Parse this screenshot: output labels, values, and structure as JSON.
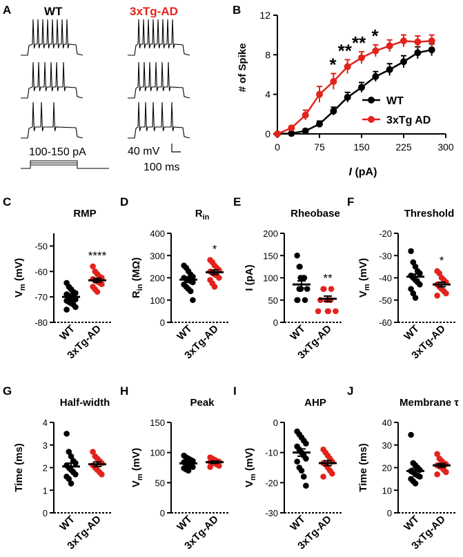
{
  "panelA": {
    "label": "A",
    "wt_label": "WT",
    "tg_label": "3xTg-AD",
    "tg_color": "#e3231b",
    "stim_label": "100-150 pA",
    "scale_mv": "40 mV",
    "scale_ms": "100 ms"
  },
  "panelB": {
    "label": "B",
    "ylabel": "# of Spike",
    "xlabel_i": "I",
    "xlabel_unit": " (pA)",
    "sig": [
      "*",
      "**",
      "**",
      "*"
    ],
    "chart_data": {
      "type": "line",
      "x": [
        0,
        25,
        50,
        75,
        100,
        125,
        150,
        175,
        200,
        225,
        250,
        275
      ],
      "xlim": [
        0,
        300
      ],
      "ylim": [
        0,
        12
      ],
      "xticks": [
        0,
        75,
        150,
        225,
        300
      ],
      "xtick_labels": [
        "0",
        "75",
        "150",
        "225",
        "300"
      ],
      "yticks": [
        0,
        4,
        8,
        12
      ],
      "ytick_labels": [
        "0",
        "4",
        "8",
        "12"
      ],
      "series": [
        {
          "name": "WT",
          "color": "#000000",
          "values": [
            0,
            0.05,
            0.3,
            1.0,
            2.3,
            3.7,
            4.7,
            5.8,
            6.5,
            7.3,
            8.2,
            8.5
          ],
          "err": [
            0,
            0.1,
            0.2,
            0.3,
            0.4,
            0.5,
            0.5,
            0.5,
            0.6,
            0.6,
            0.6,
            0.6
          ]
        },
        {
          "name": "3xTg AD",
          "color": "#e3231b",
          "values": [
            0,
            0.6,
            1.9,
            4.0,
            5.3,
            6.8,
            7.7,
            8.4,
            8.9,
            9.4,
            9.3,
            9.4
          ],
          "err": [
            0,
            0.2,
            0.5,
            0.8,
            0.8,
            0.7,
            0.6,
            0.6,
            0.6,
            0.6,
            0.6,
            0.6
          ]
        }
      ]
    }
  },
  "dot_panels": [
    {
      "label": "C",
      "title": "RMP",
      "sig": "****",
      "ylabel": "Vm (mV)",
      "x_labels": [
        "WT",
        "3xTg-AD"
      ],
      "chart_data": {
        "type": "scatter",
        "ylim": [
          -80,
          -45
        ],
        "yticks": [
          -80,
          -70,
          -60,
          -50
        ],
        "ytick_labels": [
          "-80",
          "-70",
          "-60",
          "-50"
        ],
        "means": [
          -70,
          -63.5
        ],
        "sems": [
          1.0,
          0.8
        ],
        "groups": [
          {
            "name": "WT",
            "color": "#000000",
            "values": [
              -64.5,
              -66,
              -67,
              -68,
              -68.5,
              -69,
              -69.5,
              -70,
              -70.5,
              -71,
              -71.5,
              -72,
              -72.5,
              -73,
              -74,
              -75
            ]
          },
          {
            "name": "3xTg-AD",
            "color": "#e3231b",
            "values": [
              -58,
              -60,
              -61,
              -62,
              -62.5,
              -63,
              -63.5,
              -64,
              -64.5,
              -65,
              -66,
              -67,
              -68
            ]
          }
        ]
      }
    },
    {
      "label": "D",
      "title": "Rin",
      "sig": "*",
      "ylabel": "Rin (MΩ)",
      "x_labels": [
        "WT",
        "3xTg-AD"
      ],
      "chart_data": {
        "type": "scatter",
        "ylim": [
          0,
          400
        ],
        "yticks": [
          0,
          100,
          200,
          300,
          400
        ],
        "ytick_labels": [
          "0",
          "100",
          "200",
          "300",
          "400"
        ],
        "means": [
          192,
          225
        ],
        "sems": [
          12,
          10
        ],
        "groups": [
          {
            "name": "WT",
            "color": "#000000",
            "values": [
              255,
              245,
              230,
              215,
              205,
              200,
              195,
              190,
              185,
              180,
              170,
              160,
              150,
              140,
              100
            ]
          },
          {
            "name": "3xTg-AD",
            "color": "#e3231b",
            "values": [
              280,
              270,
              255,
              245,
              235,
              228,
              222,
              215,
              210,
              200,
              190,
              175,
              160
            ]
          }
        ]
      }
    },
    {
      "label": "E",
      "title": "Rheobase",
      "sig": "**",
      "ylabel": "I (pA)",
      "x_labels": [
        "WT",
        "3xTg-AD"
      ],
      "chart_data": {
        "type": "scatter",
        "ylim": [
          0,
          200
        ],
        "yticks": [
          0,
          50,
          100,
          150,
          200
        ],
        "ytick_labels": [
          "0",
          "50",
          "100",
          "150",
          "200"
        ],
        "means": [
          85,
          53
        ],
        "sems": [
          8,
          6
        ],
        "groups": [
          {
            "name": "WT",
            "color": "#000000",
            "values": [
              150,
              125,
              125,
              100,
              100,
              100,
              75,
              75,
              75,
              75,
              50,
              50,
              50
            ]
          },
          {
            "name": "3xTg-AD",
            "color": "#e3231b",
            "values": [
              75,
              75,
              75,
              50,
              50,
              50,
              50,
              25,
              25,
              25,
              25
            ]
          }
        ]
      }
    },
    {
      "label": "F",
      "title": "Threshold",
      "sig": "*",
      "ylabel": "Vm (mV)",
      "x_labels": [
        "WT",
        "3xTg-AD"
      ],
      "chart_data": {
        "type": "scatter",
        "ylim": [
          -60,
          -20
        ],
        "yticks": [
          -60,
          -50,
          -40,
          -30,
          -20
        ],
        "ytick_labels": [
          "-60",
          "-50",
          "-40",
          "-30",
          "-20"
        ],
        "means": [
          -39.5,
          -43
        ],
        "sems": [
          1.2,
          1.0
        ],
        "groups": [
          {
            "name": "WT",
            "color": "#000000",
            "values": [
              -28,
              -33,
              -35,
              -37,
              -38,
              -39,
              -40,
              -41,
              -42,
              -43,
              -45,
              -47,
              -49
            ]
          },
          {
            "name": "3xTg-AD",
            "color": "#e3231b",
            "values": [
              -37,
              -38,
              -40,
              -41,
              -42,
              -43,
              -44,
              -45,
              -46,
              -47,
              -48
            ]
          }
        ]
      }
    },
    {
      "label": "G",
      "title": "Half-width",
      "sig": "",
      "ylabel": "Time (ms)",
      "x_labels": [
        "WT",
        "3xTg-AD"
      ],
      "chart_data": {
        "type": "scatter",
        "ylim": [
          0,
          4
        ],
        "yticks": [
          0,
          1,
          2,
          3,
          4
        ],
        "ytick_labels": [
          "0",
          "1",
          "2",
          "3",
          "4"
        ],
        "means": [
          2.05,
          2.15
        ],
        "sems": [
          0.15,
          0.1
        ],
        "groups": [
          {
            "name": "WT",
            "color": "#000000",
            "values": [
              3.5,
              2.7,
              2.5,
              2.3,
              2.2,
              2.1,
              2.0,
              1.9,
              1.8,
              1.7,
              1.6,
              1.5,
              1.3
            ]
          },
          {
            "name": "3xTg-AD",
            "color": "#e3231b",
            "values": [
              2.7,
              2.5,
              2.4,
              2.3,
              2.2,
              2.1,
              2.0,
              1.9,
              1.8,
              1.7
            ]
          }
        ]
      }
    },
    {
      "label": "H",
      "title": "Peak",
      "sig": "",
      "ylabel": "Vm (mV)",
      "x_labels": [
        "WT",
        "3xTg-AD"
      ],
      "chart_data": {
        "type": "scatter",
        "ylim": [
          0,
          150
        ],
        "yticks": [
          0,
          50,
          100,
          150
        ],
        "ytick_labels": [
          "0",
          "50",
          "100",
          "150"
        ],
        "means": [
          82,
          84
        ],
        "sems": [
          2.5,
          2
        ],
        "groups": [
          {
            "name": "WT",
            "color": "#000000",
            "values": [
              95,
              92,
              90,
              88,
              86,
              84,
              82,
              80,
              78,
              76,
              74,
              72,
              70
            ]
          },
          {
            "name": "3xTg-AD",
            "color": "#e3231b",
            "values": [
              92,
              90,
              88,
              86,
              85,
              84,
              83,
              82,
              80,
              78,
              76
            ]
          }
        ]
      }
    },
    {
      "label": "I",
      "title": "AHP",
      "sig": "",
      "ylabel": "Vm (mV)",
      "x_labels": [
        "WT",
        "3xTg-AD"
      ],
      "chart_data": {
        "type": "scatter",
        "ylim": [
          -30,
          0
        ],
        "yticks": [
          -30,
          -20,
          -10,
          0
        ],
        "ytick_labels": [
          "-30",
          "-20",
          "-10",
          "0"
        ],
        "means": [
          -10,
          -13.5
        ],
        "sems": [
          1.2,
          0.8
        ],
        "groups": [
          {
            "name": "WT",
            "color": "#000000",
            "values": [
              -3,
              -4,
              -5,
              -6,
              -7,
              -8,
              -9,
              -10,
              -11,
              -12,
              -13,
              -15,
              -16,
              -18,
              -21
            ]
          },
          {
            "name": "3xTg-AD",
            "color": "#e3231b",
            "values": [
              -9,
              -10,
              -11,
              -12,
              -13,
              -13.5,
              -14,
              -15,
              -16,
              -17,
              -18
            ]
          }
        ]
      }
    },
    {
      "label": "J",
      "title": "Membrane τ",
      "sig": "",
      "ylabel": "Time (ms)",
      "x_labels": [
        "WT",
        "3xTg-AD"
      ],
      "chart_data": {
        "type": "scatter",
        "ylim": [
          0,
          40
        ],
        "yticks": [
          0,
          10,
          20,
          30,
          40
        ],
        "ytick_labels": [
          "0",
          "10",
          "20",
          "30",
          "40"
        ],
        "means": [
          18.5,
          21
        ],
        "sems": [
          1.2,
          0.8
        ],
        "groups": [
          {
            "name": "WT",
            "color": "#000000",
            "values": [
              34.5,
              22,
              21,
              20,
              19,
              18.5,
              18,
              17,
              16.5,
              16,
              15,
              14,
              13
            ]
          },
          {
            "name": "3xTg-AD",
            "color": "#e3231b",
            "values": [
              26,
              24,
              23,
              22,
              21.5,
              21,
              20.5,
              20,
              19,
              18,
              17
            ]
          }
        ]
      }
    }
  ]
}
